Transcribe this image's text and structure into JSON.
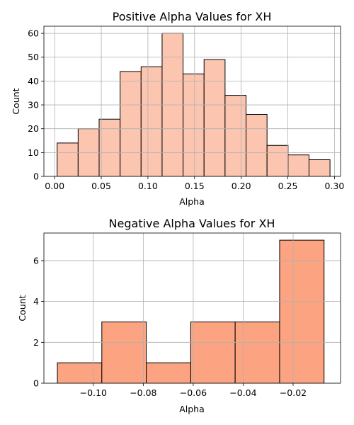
{
  "chart_data": [
    {
      "type": "bar",
      "title": "Positive Alpha Values for XH",
      "xlabel": "Alpha",
      "ylabel": "Count",
      "bar_color": "#fcc5b0",
      "xlim": [
        -0.0115,
        0.3065
      ],
      "ylim": [
        0,
        63
      ],
      "grid": true,
      "xticks": [
        {
          "value": 0.0,
          "label": "0.00"
        },
        {
          "value": 0.05,
          "label": "0.05"
        },
        {
          "value": 0.1,
          "label": "0.10"
        },
        {
          "value": 0.15,
          "label": "0.15"
        },
        {
          "value": 0.2,
          "label": "0.20"
        },
        {
          "value": 0.25,
          "label": "0.25"
        },
        {
          "value": 0.3,
          "label": "0.30"
        }
      ],
      "yticks": [
        {
          "value": 0,
          "label": "0"
        },
        {
          "value": 10,
          "label": "10"
        },
        {
          "value": 20,
          "label": "20"
        },
        {
          "value": 30,
          "label": "30"
        },
        {
          "value": 40,
          "label": "40"
        },
        {
          "value": 50,
          "label": "50"
        },
        {
          "value": 60,
          "label": "60"
        }
      ],
      "bins": [
        {
          "x0": 0.0027,
          "x1": 0.0252,
          "value": 14
        },
        {
          "x0": 0.0252,
          "x1": 0.0477,
          "value": 20
        },
        {
          "x0": 0.0477,
          "x1": 0.0702,
          "value": 24
        },
        {
          "x0": 0.0702,
          "x1": 0.0927,
          "value": 44
        },
        {
          "x0": 0.0927,
          "x1": 0.1152,
          "value": 46
        },
        {
          "x0": 0.1152,
          "x1": 0.1377,
          "value": 60
        },
        {
          "x0": 0.1377,
          "x1": 0.1602,
          "value": 43
        },
        {
          "x0": 0.1602,
          "x1": 0.1827,
          "value": 49
        },
        {
          "x0": 0.1827,
          "x1": 0.2052,
          "value": 34
        },
        {
          "x0": 0.2052,
          "x1": 0.2277,
          "value": 26
        },
        {
          "x0": 0.2277,
          "x1": 0.2502,
          "value": 13
        },
        {
          "x0": 0.2502,
          "x1": 0.2727,
          "value": 9
        },
        {
          "x0": 0.2727,
          "x1": 0.2952,
          "value": 7
        }
      ]
    },
    {
      "type": "bar",
      "title": "Negative Alpha Values for XH",
      "xlabel": "Alpha",
      "ylabel": "Count",
      "bar_color": "#fca482",
      "xlim": [
        -0.1198,
        -0.001
      ],
      "ylim": [
        0,
        7.35
      ],
      "grid": true,
      "xticks": [
        {
          "value": -0.1,
          "label": "−0.10"
        },
        {
          "value": -0.08,
          "label": "−0.08"
        },
        {
          "value": -0.06,
          "label": "−0.06"
        },
        {
          "value": -0.04,
          "label": "−0.04"
        },
        {
          "value": -0.02,
          "label": "−0.02"
        }
      ],
      "yticks": [
        {
          "value": 0,
          "label": "0"
        },
        {
          "value": 2,
          "label": "2"
        },
        {
          "value": 4,
          "label": "4"
        },
        {
          "value": 6,
          "label": "6"
        }
      ],
      "bins": [
        {
          "x0": -0.1144,
          "x1": -0.0966,
          "value": 1
        },
        {
          "x0": -0.0966,
          "x1": -0.0788,
          "value": 3
        },
        {
          "x0": -0.0788,
          "x1": -0.061,
          "value": 1
        },
        {
          "x0": -0.061,
          "x1": -0.0432,
          "value": 3
        },
        {
          "x0": -0.0432,
          "x1": -0.0254,
          "value": 3
        },
        {
          "x0": -0.0254,
          "x1": -0.0076,
          "value": 7
        }
      ]
    }
  ]
}
